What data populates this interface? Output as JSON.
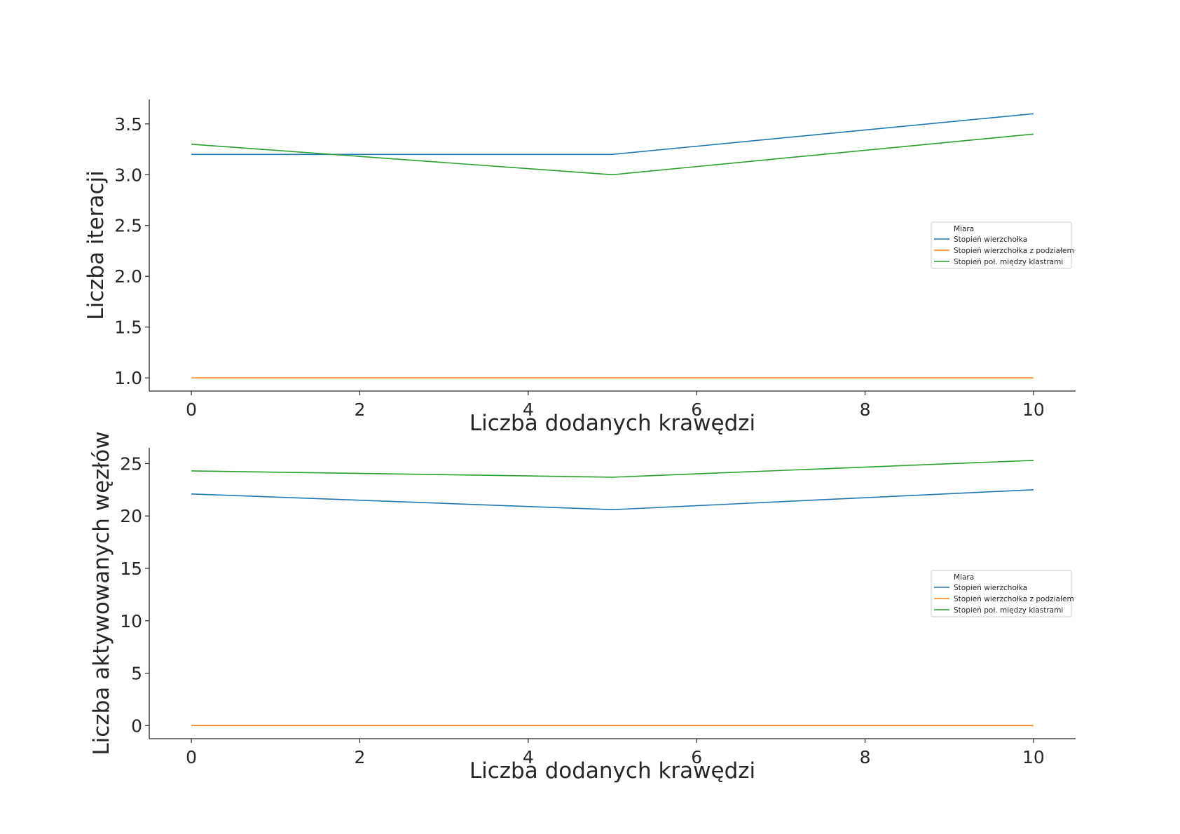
{
  "chart_data": [
    {
      "type": "line",
      "xlabel": "Liczba dodanych krawędzi",
      "ylabel": "Liczba iteracji",
      "x": [
        0,
        5,
        10
      ],
      "xlim": [
        -0.5,
        10.5
      ],
      "ylim": [
        0.87,
        3.74
      ],
      "xticks": [
        0,
        2,
        4,
        6,
        8,
        10
      ],
      "xtick_labels": [
        "0",
        "2",
        "4",
        "6",
        "8",
        "10"
      ],
      "yticks": [
        1.0,
        1.5,
        2.0,
        2.5,
        3.0,
        3.5
      ],
      "ytick_labels": [
        "1.0",
        "1.5",
        "2.0",
        "2.5",
        "3.0",
        "3.5"
      ],
      "grid": false,
      "legend": {
        "title": "Miara",
        "placement": "center-right",
        "entries": [
          "Stopień wierzchołka",
          "Stopień wierzchołka z podziałem",
          "Stopień poł. między klastrami"
        ]
      },
      "series": [
        {
          "name": "Stopień wierzchołka",
          "color": "#1f77b4",
          "values": [
            3.2,
            3.2,
            3.6
          ]
        },
        {
          "name": "Stopień wierzchołka z podziałem",
          "color": "#ff7f0e",
          "values": [
            1.0,
            1.0,
            1.0
          ]
        },
        {
          "name": "Stopień poł. między klastrami",
          "color": "#2ca02c",
          "values": [
            3.3,
            3.0,
            3.4
          ]
        }
      ]
    },
    {
      "type": "line",
      "xlabel": "Liczba dodanych krawędzi",
      "ylabel": "Liczba aktywowanych węzłów",
      "x": [
        0,
        5,
        10
      ],
      "xlim": [
        -0.5,
        10.5
      ],
      "ylim": [
        -1.25,
        26.5
      ],
      "xticks": [
        0,
        2,
        4,
        6,
        8,
        10
      ],
      "xtick_labels": [
        "0",
        "2",
        "4",
        "6",
        "8",
        "10"
      ],
      "yticks": [
        0,
        5,
        10,
        15,
        20,
        25
      ],
      "ytick_labels": [
        "0",
        "5",
        "10",
        "15",
        "20",
        "25"
      ],
      "grid": false,
      "legend": {
        "title": "Miara",
        "placement": "center-right",
        "entries": [
          "Stopień wierzchołka",
          "Stopień wierzchołka z podziałem",
          "Stopień poł. między klastrami"
        ]
      },
      "series": [
        {
          "name": "Stopień wierzchołka",
          "color": "#1f77b4",
          "values": [
            22.1,
            20.6,
            22.5
          ]
        },
        {
          "name": "Stopień wierzchołka z podziałem",
          "color": "#ff7f0e",
          "values": [
            0,
            0,
            0
          ]
        },
        {
          "name": "Stopień poł. między klastrami",
          "color": "#2ca02c",
          "values": [
            24.3,
            23.7,
            25.3
          ]
        }
      ]
    }
  ]
}
